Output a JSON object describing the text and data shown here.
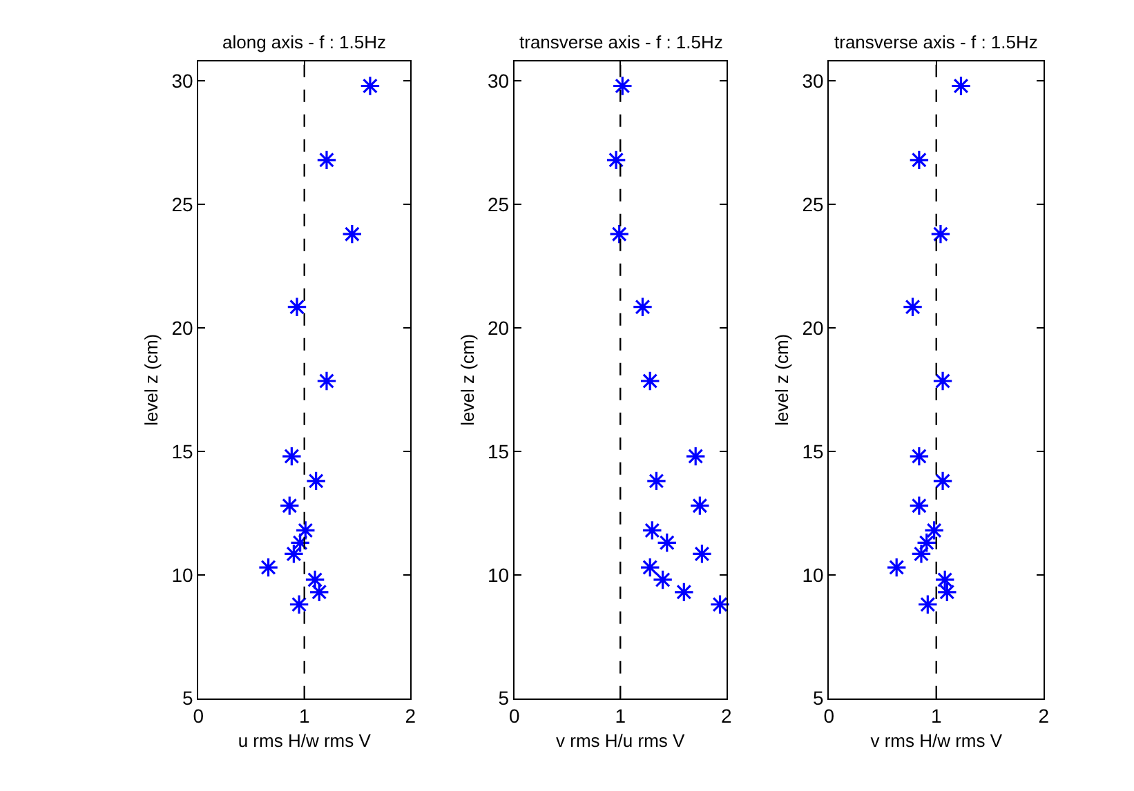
{
  "chart_data": [
    {
      "type": "scatter",
      "title": "along axis - f : 1.5Hz",
      "xlabel": "u rms H/w rms V",
      "ylabel": "level z (cm)",
      "marker": "cross",
      "xlim": [
        0,
        2
      ],
      "xticks": [
        0,
        1,
        2
      ],
      "ylim": [
        5,
        30.8
      ],
      "yticks": [
        5,
        10,
        15,
        20,
        25,
        30
      ],
      "ref_lines": [
        {
          "axis": "x",
          "value": 1,
          "color": "#000000",
          "line_style": "dashed"
        }
      ],
      "series": [
        {
          "color": "#0000ff",
          "x": [
            1.62,
            1.21,
            1.45,
            0.93,
            1.21,
            0.88,
            1.11,
            0.86,
            1.01,
            0.96,
            0.9,
            0.66,
            1.1,
            1.14,
            0.95
          ],
          "values": [
            29.8,
            26.8,
            23.8,
            20.85,
            17.85,
            14.8,
            13.8,
            12.8,
            11.8,
            11.3,
            10.85,
            10.3,
            9.8,
            9.3,
            8.8
          ]
        }
      ]
    },
    {
      "type": "scatter",
      "title": "transverse axis - f : 1.5Hz",
      "xlabel": "v rms H/u rms V",
      "ylabel": "level z (cm)",
      "marker": "cross",
      "xlim": [
        0,
        2
      ],
      "xticks": [
        0,
        1,
        2
      ],
      "ylim": [
        5,
        30.8
      ],
      "yticks": [
        5,
        10,
        15,
        20,
        25,
        30
      ],
      "ref_lines": [
        {
          "axis": "x",
          "value": 1,
          "color": "#000000",
          "line_style": "dashed"
        }
      ],
      "series": [
        {
          "color": "#0000ff",
          "x": [
            1.02,
            0.96,
            0.99,
            1.21,
            1.28,
            1.71,
            1.34,
            1.75,
            1.3,
            1.44,
            1.77,
            1.28,
            1.4,
            1.6,
            1.94
          ],
          "values": [
            29.8,
            26.8,
            23.8,
            20.85,
            17.85,
            14.8,
            13.8,
            12.8,
            11.8,
            11.3,
            10.85,
            10.3,
            9.8,
            9.3,
            8.8
          ]
        }
      ]
    },
    {
      "type": "scatter",
      "title": "transverse axis - f : 1.5Hz",
      "xlabel": "v rms H/w rms V",
      "ylabel": "level z (cm)",
      "marker": "cross",
      "xlim": [
        0,
        2
      ],
      "xticks": [
        0,
        1,
        2
      ],
      "ylim": [
        5,
        30.8
      ],
      "yticks": [
        5,
        10,
        15,
        20,
        25,
        30
      ],
      "ref_lines": [
        {
          "axis": "x",
          "value": 1,
          "color": "#000000",
          "line_style": "dashed"
        }
      ],
      "series": [
        {
          "color": "#0000ff",
          "x": [
            1.23,
            0.84,
            1.04,
            0.78,
            1.06,
            0.84,
            1.06,
            0.84,
            0.98,
            0.91,
            0.86,
            0.63,
            1.08,
            1.1,
            0.92
          ],
          "values": [
            29.8,
            26.8,
            23.8,
            20.85,
            17.85,
            14.8,
            13.8,
            12.8,
            11.8,
            11.3,
            10.85,
            10.3,
            9.8,
            9.3,
            8.8
          ]
        }
      ]
    }
  ]
}
